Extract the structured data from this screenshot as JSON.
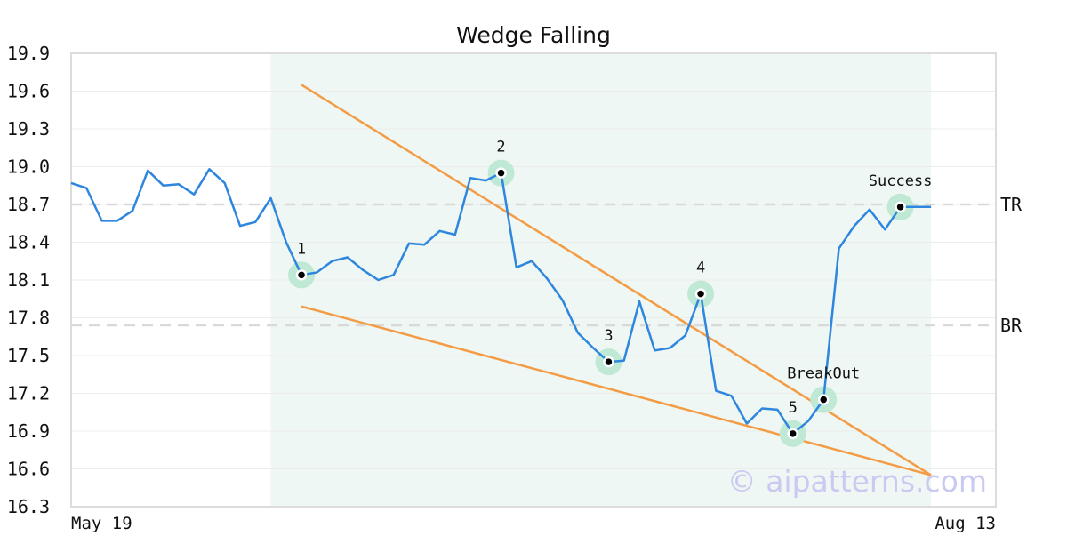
{
  "chart_data": {
    "type": "line",
    "title": "Wedge Falling",
    "xlabel": "",
    "ylabel": "",
    "ylim": [
      16.3,
      19.9
    ],
    "yticks": [
      "19.9",
      "19.6",
      "19.3",
      "19.0",
      "18.7",
      "18.4",
      "18.1",
      "17.8",
      "17.5",
      "17.2",
      "16.9",
      "16.6",
      "16.3"
    ],
    "xtick_labels": [
      {
        "index": 0,
        "label": "May 19"
      },
      {
        "index": 57,
        "label": "Aug 13"
      }
    ],
    "grid": true,
    "x_count": 58,
    "series": [
      {
        "color": "#2e86de",
        "values": [
          18.87,
          18.83,
          18.57,
          18.57,
          18.65,
          18.97,
          18.85,
          18.86,
          18.78,
          18.98,
          18.87,
          18.53,
          18.56,
          18.75,
          18.4,
          18.14,
          18.16,
          18.25,
          18.28,
          18.18,
          18.1,
          18.14,
          18.39,
          18.38,
          18.49,
          18.46,
          18.91,
          18.89,
          18.95,
          18.2,
          18.25,
          18.11,
          17.94,
          17.68,
          17.56,
          17.45,
          17.46,
          17.93,
          17.54,
          17.56,
          17.66,
          17.99,
          17.22,
          17.18,
          16.96,
          17.08,
          17.07,
          16.88,
          16.98,
          17.15,
          18.35,
          18.53,
          18.66,
          18.5,
          18.68,
          18.68,
          18.68
        ]
      }
    ],
    "highlight_region": {
      "x_start": 13,
      "x_end": 56,
      "color": "#eef7f3"
    },
    "levels": [
      {
        "label": "TR",
        "value": 18.7
      },
      {
        "label": "BR",
        "value": 17.74
      }
    ],
    "trendlines": [
      {
        "color": "#f39c45",
        "x1": 15,
        "y1": 19.65,
        "x2": 56,
        "y2": 16.55
      },
      {
        "color": "#f39c45",
        "x1": 15,
        "y1": 17.89,
        "x2": 56,
        "y2": 16.55
      }
    ],
    "points": [
      {
        "label": "1",
        "x": 15,
        "y": 18.14,
        "label_pos": "above"
      },
      {
        "label": "2",
        "x": 28,
        "y": 18.95,
        "label_pos": "above"
      },
      {
        "label": "3",
        "x": 35,
        "y": 17.45,
        "label_pos": "above"
      },
      {
        "label": "4",
        "x": 41,
        "y": 17.99,
        "label_pos": "above"
      },
      {
        "label": "5",
        "x": 47,
        "y": 16.88,
        "label_pos": "above"
      },
      {
        "label": "BreakOut",
        "x": 49,
        "y": 17.15,
        "label_pos": "above"
      },
      {
        "label": "Success",
        "x": 54,
        "y": 18.68,
        "label_pos": "above"
      }
    ],
    "watermark": "© aipatterns.com"
  }
}
